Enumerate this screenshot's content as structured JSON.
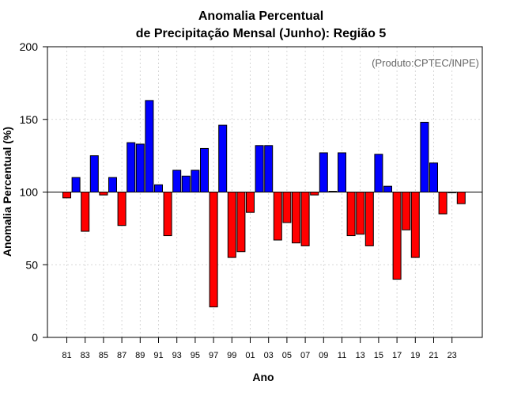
{
  "chart_data": {
    "type": "bar",
    "title_line1": "Anomalia Percentual",
    "title_line2": "de Precipitação Mensal (Junho): Região 5",
    "xlabel": "Ano",
    "ylabel": "Anomalia Percentual (%)",
    "annotation": "(Produto:CPTEC/INPE)",
    "baseline": 100,
    "ylim": [
      0,
      200
    ],
    "yticks": [
      0,
      50,
      100,
      150,
      200
    ],
    "grid": true,
    "colors": {
      "above": "#0000ff",
      "below": "#ff0000",
      "grid": "#cccccc"
    },
    "categories": [
      "81",
      "82",
      "83",
      "84",
      "85",
      "86",
      "87",
      "88",
      "89",
      "90",
      "91",
      "92",
      "93",
      "94",
      "95",
      "96",
      "97",
      "98",
      "99",
      "00",
      "01",
      "02",
      "03",
      "04",
      "05",
      "06",
      "07",
      "08",
      "09",
      "10",
      "11",
      "12",
      "13",
      "14",
      "15",
      "16",
      "17",
      "18",
      "19",
      "20",
      "21",
      "22",
      "23",
      "24"
    ],
    "xtick_labels": [
      "81",
      "83",
      "85",
      "87",
      "89",
      "91",
      "93",
      "95",
      "97",
      "99",
      "01",
      "03",
      "05",
      "07",
      "09",
      "11",
      "13",
      "15",
      "17",
      "19",
      "21",
      "23"
    ],
    "values": [
      96,
      110,
      73,
      125,
      98,
      110,
      77,
      134,
      133,
      163,
      105,
      70,
      115,
      111,
      115,
      130,
      21,
      146,
      55,
      59,
      86,
      132,
      132,
      67,
      79,
      65,
      63,
      98,
      127,
      100.5,
      127,
      70,
      71,
      63,
      126,
      104,
      40,
      74,
      55,
      148,
      120,
      85,
      100,
      92
    ]
  }
}
